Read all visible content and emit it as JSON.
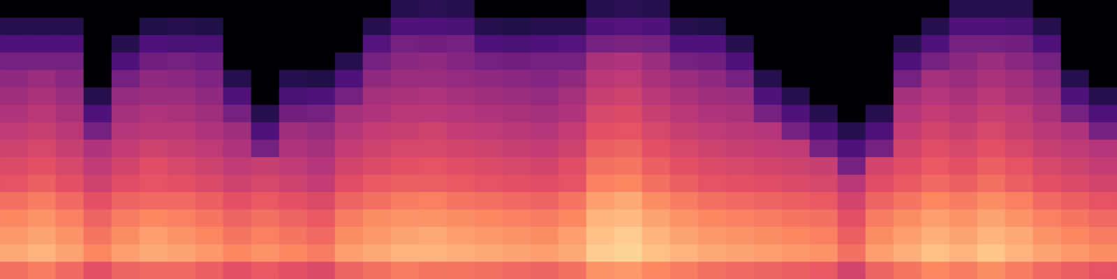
{
  "chart_data": {
    "type": "heatmap",
    "tick_labels": false,
    "zlim": [
      -80,
      0
    ],
    "cells": [
      [
        -24,
        -14,
        -17,
        -20,
        -24,
        -29,
        -32,
        -35,
        -38,
        -41,
        -44,
        -47,
        -52,
        -60,
        -68,
        -80
      ],
      [
        -22,
        -12,
        -15,
        -18,
        -22,
        -27,
        -30,
        -33,
        -36,
        -39,
        -42,
        -45,
        -52,
        -60,
        -68,
        -80
      ],
      [
        -25,
        -15,
        -18,
        -21,
        -25,
        -30,
        -33,
        -36,
        -39,
        -42,
        -45,
        -48,
        -52,
        -60,
        -68,
        -80
      ],
      [
        -30,
        -20,
        -23,
        -26,
        -30,
        -35,
        -38,
        -41,
        -52,
        -60,
        -68,
        -80,
        -80,
        -80,
        -80,
        -80
      ],
      [
        -26,
        -16,
        -19,
        -22,
        -26,
        -31,
        -34,
        -37,
        -40,
        -43,
        -46,
        -52,
        -60,
        -68,
        -80,
        -80
      ],
      [
        -25,
        -14,
        -16,
        -20,
        -25,
        -29,
        -31,
        -35,
        -39,
        -41,
        -45,
        -47,
        -53,
        -60,
        -69,
        -80
      ],
      [
        -25,
        -15,
        -18,
        -21,
        -25,
        -30,
        -33,
        -36,
        -39,
        -42,
        -45,
        -48,
        -52,
        -61,
        -68,
        -80
      ],
      [
        -27,
        -17,
        -20,
        -23,
        -27,
        -32,
        -35,
        -38,
        -41,
        -44,
        -47,
        -50,
        -54,
        -61,
        -69,
        -80
      ],
      [
        -30,
        -20,
        -23,
        -26,
        -30,
        -35,
        -38,
        -41,
        -44,
        -52,
        -60,
        -68,
        -80,
        -80,
        -80,
        -80
      ],
      [
        -28,
        -18,
        -21,
        -24,
        -28,
        -33,
        -36,
        -52,
        -60,
        -68,
        -80,
        -80,
        -80,
        -80,
        -80,
        -80
      ],
      [
        -30,
        -20,
        -23,
        -26,
        -30,
        -35,
        -38,
        -41,
        -44,
        -53,
        -61,
        -68,
        -80,
        -80,
        -80,
        -80
      ],
      [
        -32,
        -22,
        -25,
        -28,
        -32,
        -37,
        -40,
        -43,
        -46,
        -52,
        -60,
        -69,
        -80,
        -80,
        -80,
        -80
      ],
      [
        -26,
        -16,
        -19,
        -22,
        -26,
        -31,
        -34,
        -37,
        -40,
        -43,
        -52,
        -60,
        -68,
        -80,
        -80,
        -80
      ],
      [
        -24,
        -14,
        -17,
        -19,
        -24,
        -28,
        -32,
        -35,
        -37,
        -41,
        -43,
        -47,
        -52,
        -59,
        -68,
        -80
      ],
      [
        -22,
        -12,
        -15,
        -18,
        -22,
        -27,
        -30,
        -33,
        -36,
        -39,
        -42,
        -45,
        -48,
        -52,
        -60,
        -68
      ],
      [
        -23,
        -12,
        -14,
        -18,
        -21,
        -27,
        -29,
        -33,
        -35,
        -39,
        -41,
        -45,
        -47,
        -53,
        -60,
        -67
      ],
      [
        -23,
        -13,
        -16,
        -19,
        -23,
        -28,
        -31,
        -34,
        -37,
        -40,
        -43,
        -46,
        -49,
        -52,
        -61,
        -68
      ],
      [
        -24,
        -14,
        -17,
        -20,
        -24,
        -29,
        -32,
        -35,
        -38,
        -41,
        -44,
        -47,
        -52,
        -60,
        -68,
        -80
      ],
      [
        -25,
        -15,
        -18,
        -21,
        -25,
        -30,
        -33,
        -36,
        -39,
        -42,
        -45,
        -48,
        -53,
        -61,
        -69,
        -80
      ],
      [
        -26,
        -16,
        -19,
        -22,
        -26,
        -31,
        -34,
        -37,
        -40,
        -43,
        -46,
        -49,
        -52,
        -60,
        -68,
        -80
      ],
      [
        -24,
        -14,
        -16,
        -20,
        -23,
        -29,
        -31,
        -35,
        -37,
        -41,
        -43,
        -47,
        -52,
        -59,
        -68,
        -80
      ],
      [
        -18,
        -8,
        -10,
        -12,
        -16,
        -21,
        -24,
        -27,
        -30,
        -33,
        -36,
        -39,
        -42,
        -52,
        -60,
        -68
      ],
      [
        -17,
        -7,
        -8,
        -11,
        -14,
        -20,
        -23,
        -26,
        -29,
        -32,
        -35,
        -38,
        -41,
        -51,
        -59,
        -67
      ],
      [
        -20,
        -10,
        -12,
        -15,
        -19,
        -24,
        -27,
        -30,
        -33,
        -36,
        -39,
        -42,
        -45,
        -52,
        -60,
        -68
      ],
      [
        -22,
        -12,
        -15,
        -18,
        -22,
        -27,
        -30,
        -33,
        -36,
        -39,
        -42,
        -45,
        -52,
        -60,
        -68,
        -80
      ],
      [
        -24,
        -14,
        -17,
        -20,
        -24,
        -29,
        -32,
        -35,
        -38,
        -41,
        -44,
        -47,
        -53,
        -60,
        -69,
        -80
      ],
      [
        -25,
        -15,
        -18,
        -21,
        -25,
        -30,
        -33,
        -36,
        -39,
        -42,
        -45,
        -52,
        -60,
        -68,
        -80,
        -80
      ],
      [
        -26,
        -16,
        -19,
        -22,
        -26,
        -31,
        -34,
        -37,
        -40,
        -52,
        -60,
        -68,
        -80,
        -80,
        -80,
        -80
      ],
      [
        -27,
        -17,
        -20,
        -23,
        -27,
        -32,
        -35,
        -38,
        -52,
        -60,
        -68,
        -80,
        -80,
        -80,
        -80,
        -80
      ],
      [
        -28,
        -18,
        -21,
        -24,
        -28,
        -33,
        -36,
        -52,
        -60,
        -68,
        -80,
        -80,
        -80,
        -80,
        -80,
        -80
      ],
      [
        -34,
        -24,
        -27,
        -30,
        -34,
        -39,
        -52,
        -60,
        -68,
        -80,
        -80,
        -80,
        -80,
        -80,
        -80,
        -80
      ],
      [
        -26,
        -16,
        -19,
        -22,
        -26,
        -31,
        -34,
        -52,
        -60,
        -68,
        -80,
        -80,
        -80,
        -80,
        -80,
        -80
      ],
      [
        -23,
        -13,
        -16,
        -19,
        -23,
        -28,
        -31,
        -34,
        -37,
        -40,
        -43,
        -52,
        -60,
        -68,
        -80,
        -80
      ],
      [
        -20,
        -10,
        -13,
        -16,
        -20,
        -25,
        -28,
        -31,
        -34,
        -37,
        -40,
        -43,
        -52,
        -60,
        -68,
        -80
      ],
      [
        -22,
        -12,
        -15,
        -18,
        -22,
        -27,
        -30,
        -33,
        -36,
        -39,
        -42,
        -45,
        -48,
        -52,
        -60,
        -68
      ],
      [
        -19,
        -9,
        -12,
        -15,
        -19,
        -24,
        -27,
        -30,
        -33,
        -36,
        -39,
        -42,
        -45,
        -52,
        -60,
        -68
      ],
      [
        -22,
        -12,
        -14,
        -18,
        -21,
        -27,
        -29,
        -33,
        -36,
        -38,
        -42,
        -44,
        -48,
        -53,
        -61,
        -68
      ],
      [
        -25,
        -15,
        -18,
        -21,
        -25,
        -30,
        -33,
        -36,
        -39,
        -42,
        -45,
        -48,
        -52,
        -60,
        -68,
        -80
      ],
      [
        -27,
        -17,
        -20,
        -23,
        -27,
        -32,
        -35,
        -38,
        -41,
        -52,
        -60,
        -68,
        -80,
        -80,
        -80,
        -80
      ],
      [
        -29,
        -19,
        -22,
        -25,
        -29,
        -34,
        -37,
        -40,
        -52,
        -60,
        -68,
        -80,
        -80,
        -80,
        -80,
        -80
      ]
    ]
  }
}
